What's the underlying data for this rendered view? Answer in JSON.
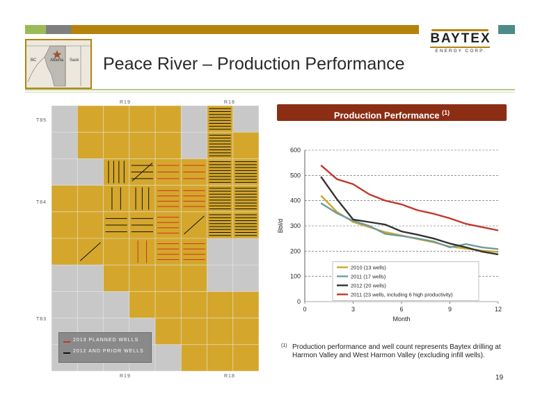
{
  "slide": {
    "title": "Peace River – Production Performance",
    "page_number": "19",
    "colors": {
      "gold": "#b8860b",
      "dark_brown": "#8b2e14",
      "green": "#9bbb59",
      "gray": "#7f7f7f",
      "teal": "#4f8a8b"
    }
  },
  "logo": {
    "name": "BAYTEX",
    "sub": "ENERGY CORP."
  },
  "locator_map": {
    "labels": [
      "BC",
      "Alberta",
      "Sask"
    ],
    "marker": "star-icon"
  },
  "panel": {
    "title": "Production Performance",
    "superscript": "(1)"
  },
  "map": {
    "top_ranges": [
      "R19",
      "R18"
    ],
    "bottom_ranges": [
      "R19",
      "R18"
    ],
    "townships": [
      "T85",
      "T84",
      "T83"
    ],
    "legend": [
      {
        "label": "2013 Planned Wells",
        "color": "#d0311e"
      },
      {
        "label": "2012 and Prior Wells",
        "color": "#111111"
      }
    ]
  },
  "chart_data": {
    "type": "line",
    "title": "",
    "xlabel": "Month",
    "ylabel": "Bbl/d",
    "xlim": [
      0,
      12
    ],
    "ylim": [
      0,
      600
    ],
    "x_ticks": [
      "0",
      "3",
      "6",
      "9",
      "12"
    ],
    "y_ticks": [
      "0",
      "100",
      "200",
      "300",
      "400",
      "500",
      "600"
    ],
    "grid": "horizontal dashed",
    "legend_position": "bottom-center",
    "series": [
      {
        "name": "2010 (13 wells)",
        "color": "#c8a82a",
        "x": [
          1,
          2,
          3,
          4,
          5,
          6,
          7,
          8,
          9,
          10,
          11,
          12
        ],
        "y": [
          420,
          355,
          315,
          295,
          275,
          262,
          248,
          235,
          218,
          210,
          202,
          197
        ]
      },
      {
        "name": "2011 (17 wells)",
        "color": "#6e9aa0",
        "x": [
          1,
          2,
          3,
          4,
          5,
          6,
          7,
          8,
          9,
          10,
          11,
          12
        ],
        "y": [
          390,
          350,
          320,
          300,
          268,
          260,
          250,
          238,
          215,
          228,
          215,
          208
        ]
      },
      {
        "name": "2012 (20 wells)",
        "color": "#333333",
        "x": [
          1,
          2,
          3,
          4,
          5,
          6,
          7,
          8,
          9,
          10,
          11,
          12
        ],
        "y": [
          495,
          405,
          325,
          315,
          305,
          278,
          265,
          250,
          230,
          215,
          198,
          187
        ]
      },
      {
        "name": "2011 (23 wells, including 6 high productivity)",
        "color": "#c0392b",
        "x": [
          1,
          2,
          3,
          4,
          5,
          6,
          7,
          8,
          9,
          10,
          11,
          12
        ],
        "y": [
          540,
          485,
          465,
          425,
          400,
          385,
          362,
          348,
          330,
          308,
          295,
          282
        ]
      }
    ]
  },
  "footnote": {
    "mark": "(1)",
    "text": "Production performance and well count represents Baytex drilling at Harmon Valley and West Harmon Valley (excluding infill wells)."
  }
}
